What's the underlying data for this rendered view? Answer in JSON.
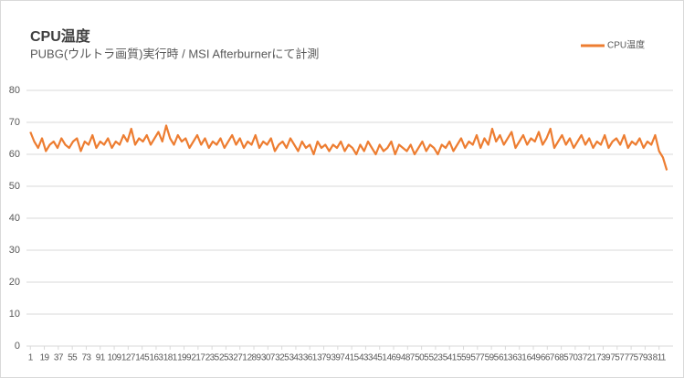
{
  "chart_data": {
    "type": "line",
    "title": "CPU温度",
    "subtitle": "PUBG(ウルトラ画質)実行時 / MSI Afterburnerにて計測",
    "x": [
      1,
      6,
      11,
      16,
      21,
      26,
      31,
      36,
      41,
      46,
      51,
      56,
      61,
      66,
      71,
      76,
      81,
      86,
      91,
      96,
      101,
      106,
      111,
      116,
      121,
      126,
      131,
      136,
      141,
      146,
      151,
      156,
      161,
      166,
      171,
      176,
      181,
      186,
      191,
      196,
      201,
      206,
      211,
      216,
      221,
      226,
      231,
      236,
      241,
      246,
      251,
      256,
      261,
      266,
      271,
      276,
      281,
      286,
      291,
      296,
      301,
      306,
      311,
      316,
      321,
      326,
      331,
      336,
      341,
      346,
      351,
      356,
      361,
      366,
      371,
      376,
      381,
      386,
      391,
      396,
      401,
      406,
      411,
      416,
      421,
      426,
      431,
      436,
      441,
      446,
      451,
      456,
      461,
      466,
      471,
      476,
      481,
      486,
      491,
      496,
      501,
      506,
      511,
      516,
      521,
      526,
      531,
      536,
      541,
      546,
      551,
      556,
      561,
      566,
      571,
      576,
      581,
      586,
      591,
      596,
      601,
      606,
      611,
      616,
      621,
      626,
      631,
      636,
      641,
      646,
      651,
      656,
      661,
      666,
      671,
      676,
      681,
      686,
      691,
      696,
      701,
      706,
      711,
      716,
      721,
      726,
      731,
      736,
      741,
      746,
      751,
      756,
      761,
      766,
      771,
      776,
      781,
      786,
      791,
      796,
      801,
      806,
      811,
      816,
      821
    ],
    "series": [
      {
        "name": "CPU温度",
        "color": "#ed7d31",
        "values": [
          67,
          64,
          62,
          65,
          61,
          63,
          64,
          62,
          65,
          63,
          62,
          64,
          65,
          61,
          64,
          63,
          66,
          62,
          64,
          63,
          65,
          62,
          64,
          63,
          66,
          64,
          68,
          63,
          65,
          64,
          66,
          63,
          65,
          67,
          64,
          69,
          65,
          63,
          66,
          64,
          65,
          62,
          64,
          66,
          63,
          65,
          62,
          64,
          63,
          65,
          62,
          64,
          66,
          63,
          65,
          62,
          64,
          63,
          66,
          62,
          64,
          63,
          65,
          61,
          63,
          64,
          62,
          65,
          63,
          61,
          64,
          62,
          63,
          60,
          64,
          62,
          63,
          61,
          63,
          62,
          64,
          61,
          63,
          62,
          60,
          63,
          61,
          64,
          62,
          60,
          63,
          61,
          62,
          64,
          60,
          63,
          62,
          61,
          63,
          60,
          62,
          64,
          61,
          63,
          62,
          60,
          63,
          62,
          64,
          61,
          63,
          65,
          62,
          64,
          63,
          66,
          62,
          65,
          63,
          68,
          64,
          66,
          63,
          65,
          67,
          62,
          64,
          66,
          63,
          65,
          64,
          67,
          63,
          65,
          68,
          62,
          64,
          66,
          63,
          65,
          62,
          64,
          66,
          63,
          65,
          62,
          64,
          63,
          66,
          62,
          64,
          65,
          63,
          66,
          62,
          64,
          63,
          65,
          62,
          64,
          63,
          66,
          61,
          59,
          55
        ]
      }
    ],
    "xlim": [
      -4,
      829
    ],
    "xticks": [
      1,
      19,
      37,
      55,
      73,
      91,
      109,
      127,
      145,
      163,
      181,
      199,
      217,
      235,
      253,
      271,
      289,
      307,
      325,
      343,
      361,
      379,
      397,
      415,
      433,
      451,
      469,
      487,
      505,
      523,
      541,
      559,
      577,
      595,
      613,
      631,
      649,
      667,
      685,
      703,
      721,
      739,
      757,
      775,
      793,
      811
    ],
    "ylim": [
      0,
      80
    ],
    "yticks": [
      0,
      10,
      20,
      30,
      40,
      50,
      60,
      70,
      80
    ],
    "grid": true,
    "legend": "top-right"
  }
}
